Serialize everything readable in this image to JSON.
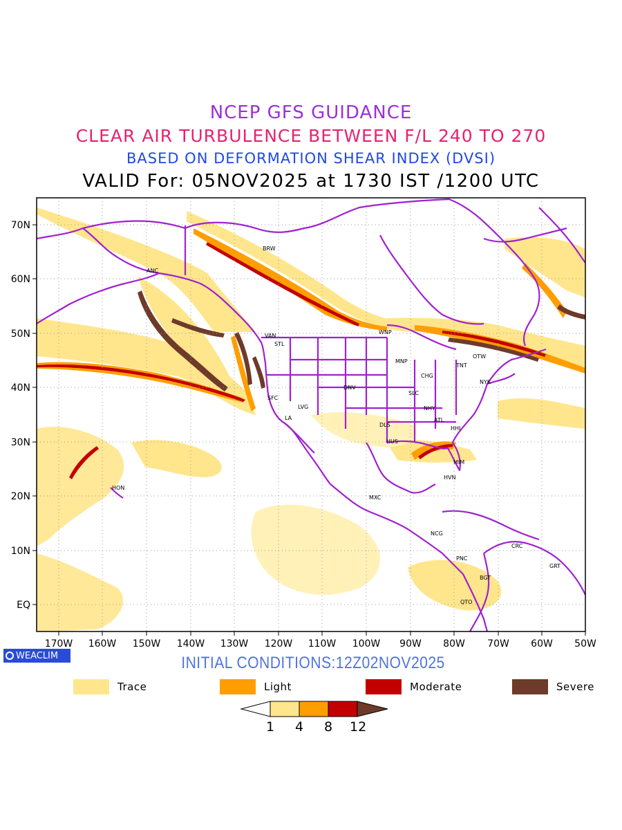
{
  "titles": {
    "line1": "NCEP GFS GUIDANCE",
    "line2": "CLEAR AIR TURBULENCE BETWEEN F/L 240 TO 270",
    "line3": "BASED ON DEFORMATION SHEAR INDEX (DVSI)",
    "line4": "VALID For: 05NOV2025 at 1730 IST /1200 UTC"
  },
  "badge": {
    "text": "WEACLIM",
    "icon": "circle-logo-icon"
  },
  "initial_conditions": "INITIAL CONDITIONS:12Z02NOV2025",
  "axes": {
    "lon_labels": [
      "170W",
      "160W",
      "150W",
      "140W",
      "130W",
      "120W",
      "110W",
      "100W",
      "90W",
      "80W",
      "70W",
      "60W",
      "50W"
    ],
    "lat_labels": [
      "70N",
      "60N",
      "50N",
      "40N",
      "30N",
      "20N",
      "10N",
      "EQ"
    ]
  },
  "cities": [
    "BRW",
    "ANC",
    "VAN",
    "STL",
    "WNP",
    "MNP",
    "TNT",
    "OTW",
    "CHG",
    "NYK",
    "DNV",
    "SFC",
    "LVG",
    "SLC",
    "LA",
    "NHY",
    "ATL",
    "DLS",
    "HHI",
    "HUS",
    "MIM",
    "HVN",
    "HON",
    "MXC",
    "NCG",
    "CRC",
    "PNC",
    "GRT",
    "BGT",
    "QTO"
  ],
  "legend": [
    {
      "label": "Trace",
      "color": "#ffe68c"
    },
    {
      "label": "Light",
      "color": "#ff9e00"
    },
    {
      "label": "Moderate",
      "color": "#c20000"
    },
    {
      "label": "Severe",
      "color": "#6e3a2a"
    }
  ],
  "colorbar": {
    "ticks": [
      "1",
      "4",
      "8",
      "12"
    ]
  },
  "colors": {
    "coastline": "#a020d0",
    "grid": "#9a9a9a"
  }
}
